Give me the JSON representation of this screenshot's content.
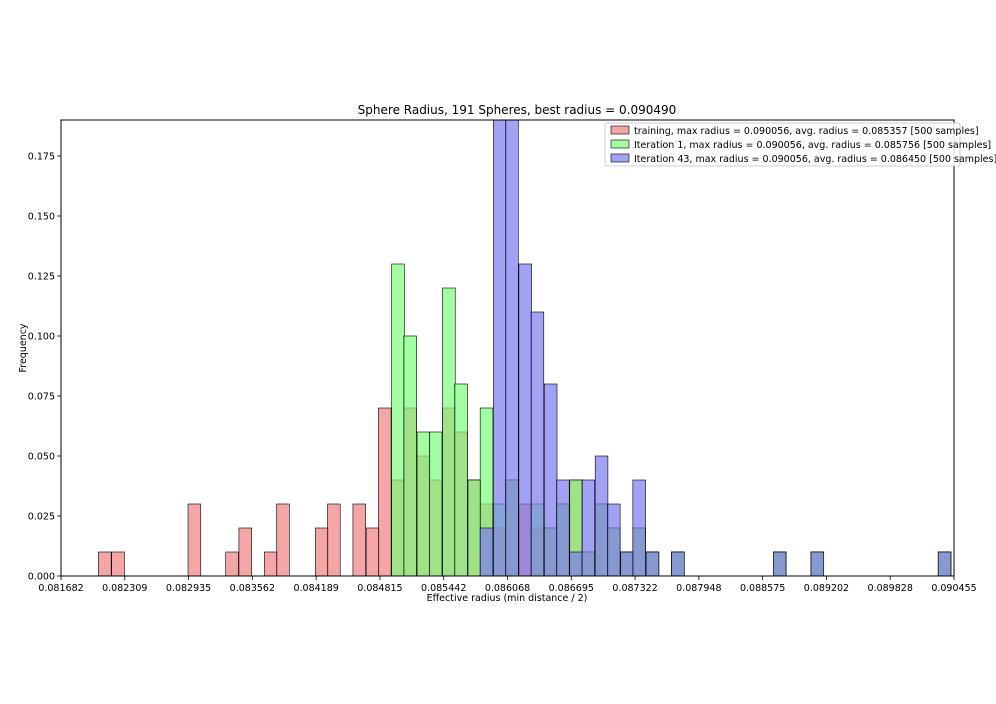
{
  "chart_data": {
    "type": "bar",
    "title": "Sphere Radius, 191 Spheres, best radius = 0.090490",
    "xlabel": "Effective radius (min distance / 2)",
    "ylabel": "Frequency",
    "xlim": [
      0.081682,
      0.090455
    ],
    "ylim": [
      0,
      0.19
    ],
    "bin_width": 0.000125,
    "xticks": [
      "0.081682",
      "0.082309",
      "0.082935",
      "0.083562",
      "0.084189",
      "0.084815",
      "0.085442",
      "0.086068",
      "0.086695",
      "0.087322",
      "0.087948",
      "0.088575",
      "0.089202",
      "0.089828",
      "0.090455"
    ],
    "yticks": [
      "0.000",
      "0.025",
      "0.050",
      "0.075",
      "0.100",
      "0.125",
      "0.150",
      "0.175"
    ],
    "legend_position": "top-right",
    "series": [
      {
        "name": "training, max radius = 0.090056, avg. radius = 0.085357 [500 samples]",
        "color": "#f08080",
        "bin_starts": [
          0.08205,
          0.08218,
          0.08293,
          0.0833,
          0.08343,
          0.08368,
          0.0838,
          0.08418,
          0.0843,
          0.08455,
          0.08468,
          0.0848,
          0.08493,
          0.08505,
          0.08518,
          0.0853,
          0.08543,
          0.08555,
          0.08568,
          0.0858,
          0.08593,
          0.08605,
          0.08618,
          0.0863,
          0.08643,
          0.08655,
          0.08668,
          0.0868,
          0.08693,
          0.08705,
          0.08718,
          0.0873,
          0.08743,
          0.08768,
          0.08868,
          0.08905,
          0.0903
        ],
        "values": [
          0.01,
          0.01,
          0.03,
          0.01,
          0.02,
          0.01,
          0.03,
          0.02,
          0.03,
          0.03,
          0.02,
          0.07,
          0.04,
          0.07,
          0.05,
          0.04,
          0.07,
          0.06,
          0.04,
          0.03,
          0.02,
          0.04,
          0.03,
          0.02,
          0.02,
          0.03,
          0.04,
          0.01,
          0.03,
          0.02,
          0.01,
          0.02,
          0.01,
          0.01,
          0.01,
          0.01,
          0.01
        ]
      },
      {
        "name": "Iteration 1, max radius = 0.090056, avg. radius = 0.085756 [500 samples]",
        "color": "#7cfc7c",
        "bin_starts": [
          0.08493,
          0.08505,
          0.08518,
          0.0853,
          0.08543,
          0.08555,
          0.08568,
          0.0858,
          0.08593,
          0.08605,
          0.0863,
          0.08643,
          0.08655,
          0.08668,
          0.0868,
          0.08693,
          0.08705,
          0.08718,
          0.0873,
          0.08743,
          0.08768,
          0.08868,
          0.08905,
          0.0903
        ],
        "values": [
          0.13,
          0.1,
          0.06,
          0.06,
          0.12,
          0.08,
          0.04,
          0.07,
          0.03,
          0.04,
          0.03,
          0.02,
          0.03,
          0.04,
          0.01,
          0.03,
          0.02,
          0.01,
          0.02,
          0.01,
          0.01,
          0.01,
          0.01,
          0.01
        ]
      },
      {
        "name": "Iteration 43, max radius = 0.090056, avg. radius = 0.086450 [500 samples]",
        "color": "#7b7bf0",
        "bin_starts": [
          0.0858,
          0.08593,
          0.08605,
          0.08618,
          0.0863,
          0.08643,
          0.08655,
          0.08668,
          0.0868,
          0.08693,
          0.08705,
          0.08718,
          0.0873,
          0.08743,
          0.08768,
          0.08868,
          0.08905,
          0.0903
        ],
        "values": [
          0.02,
          0.19,
          0.19,
          0.13,
          0.11,
          0.08,
          0.04,
          0.01,
          0.04,
          0.05,
          0.03,
          0.01,
          0.04,
          0.01,
          0.01,
          0.01,
          0.01,
          0.01
        ]
      }
    ]
  }
}
